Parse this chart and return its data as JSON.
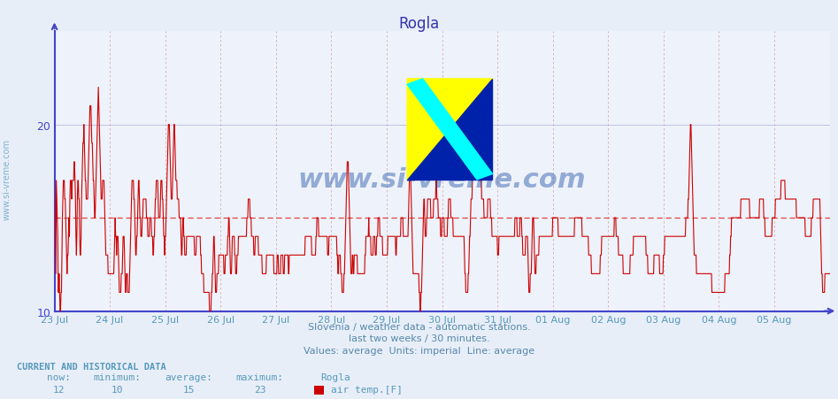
{
  "title": "Rogla",
  "title_color": "#3333aa",
  "bg_color": "#e8eef8",
  "plot_bg_color": "#eef2fa",
  "line_color": "#cc0000",
  "axis_color": "#4444cc",
  "grid_color_h": "#bbbbdd",
  "grid_color_v": "#ddaaaa",
  "avg_line_color": "#dd4444",
  "avg_value": 15,
  "ylim_min": 10,
  "ylim_max": 25,
  "yticks": [
    10,
    20
  ],
  "footnote1": "Slovenia / weather data - automatic stations.",
  "footnote2": "last two weeks / 30 minutes.",
  "footnote3": "Values: average  Units: imperial  Line: average",
  "footnote_color": "#5588aa",
  "watermark": "www.si-vreme.com",
  "watermark_color": "#2255aa",
  "stats_header": "CURRENT AND HISTORICAL DATA",
  "stats_values": [
    "12",
    "10",
    "15",
    "23"
  ],
  "stats_series": "air temp.[F]",
  "stats_color": "#5599bb",
  "x_dates": [
    "23 Jul",
    "24 Jul",
    "25 Jul",
    "26 Jul",
    "27 Jul",
    "28 Jul",
    "29 Jul",
    "30 Jul",
    "31 Jul",
    "01 Aug",
    "02 Aug",
    "03 Aug",
    "04 Aug",
    "05 Aug"
  ],
  "y_data": [
    17,
    16,
    14,
    12,
    17,
    16,
    15,
    14,
    11,
    11,
    12,
    11,
    10,
    10,
    11,
    11,
    13,
    15,
    16,
    17,
    17,
    17,
    16,
    16,
    15,
    14,
    13,
    12,
    13,
    13,
    14,
    15,
    14,
    16,
    17,
    17,
    17,
    16,
    17,
    17,
    17,
    17,
    18,
    18,
    17,
    16,
    14,
    13,
    14,
    16,
    17,
    17,
    16,
    16,
    14,
    13,
    13,
    14,
    16,
    17,
    18,
    19,
    19,
    20,
    19,
    18,
    17,
    17,
    16,
    16,
    16,
    16,
    17,
    18,
    19,
    20,
    21,
    21,
    21,
    20,
    19,
    19,
    18,
    17,
    17,
    16,
    15,
    15,
    16,
    17,
    18,
    19,
    20,
    21,
    22,
    21,
    20,
    19,
    18,
    17,
    16,
    16,
    16,
    17,
    17,
    17,
    17,
    16,
    15,
    14,
    13,
    13,
    13,
    13,
    13,
    12,
    12,
    12,
    12,
    12,
    12,
    12,
    12,
    12,
    12,
    12,
    12,
    12,
    13,
    14,
    15,
    14,
    14,
    13,
    14,
    14,
    14,
    13,
    12,
    11,
    11,
    11,
    11,
    12,
    12,
    12,
    13,
    14,
    14,
    14,
    13,
    12,
    11,
    11,
    12,
    12,
    12,
    11,
    11,
    11,
    11,
    12,
    13,
    14,
    15,
    16,
    17,
    17,
    17,
    17,
    16,
    16,
    15,
    14,
    13,
    13,
    14,
    14,
    15,
    16,
    17,
    17,
    16,
    15,
    15,
    14,
    14,
    14,
    15,
    15,
    16,
    16,
    16,
    16,
    16,
    16,
    16,
    15,
    15,
    15,
    14,
    14,
    14,
    14,
    15,
    15,
    15,
    15,
    14,
    14,
    14,
    13,
    13,
    14,
    14,
    15,
    16,
    16,
    17,
    17,
    17,
    17,
    16,
    15,
    15,
    15,
    15,
    16,
    17,
    17,
    17,
    16,
    16,
    15,
    14,
    14,
    13,
    14,
    14,
    15,
    16,
    17,
    18,
    19,
    20,
    20,
    20,
    19,
    18,
    17,
    16,
    16,
    16,
    17,
    18,
    19,
    20,
    20,
    19,
    18,
    17,
    17,
    17,
    16,
    16,
    16,
    16,
    15,
    15,
    15,
    15,
    14,
    13,
    13,
    14,
    15,
    15,
    14,
    14,
    13,
    13,
    13,
    13,
    14,
    14,
    14,
    14,
    14,
    14,
    14,
    14,
    14,
    14,
    14,
    14,
    14,
    14,
    14,
    14,
    14,
    13,
    13,
    13,
    13,
    14,
    14,
    14,
    14,
    14,
    14,
    14,
    14,
    14,
    13,
    13,
    12,
    12,
    12,
    12,
    12,
    11,
    11,
    11,
    11,
    11,
    11,
    11,
    11,
    11,
    11,
    11,
    11,
    10,
    10,
    10,
    10,
    11,
    11,
    12,
    12,
    13,
    14,
    14,
    13,
    12,
    11,
    11,
    11,
    12,
    12,
    12,
    12,
    13,
    13,
    13,
    13,
    13,
    13,
    13,
    13,
    13,
    13,
    13,
    12,
    12,
    12,
    13,
    13,
    13,
    13,
    13,
    14,
    14,
    15,
    15,
    14,
    13,
    12,
    12,
    12,
    13,
    14,
    14,
    14,
    14,
    14,
    13,
    13,
    12,
    12,
    12,
    13,
    13,
    13,
    14,
    14,
    14,
    14,
    14,
    14,
    14,
    14,
    14,
    14,
    14,
    14,
    14,
    14,
    14,
    14,
    14,
    14,
    15,
    15,
    15,
    16,
    16,
    16,
    16,
    15,
    15,
    15,
    14,
    14,
    14,
    14,
    14,
    13,
    13,
    13,
    14,
    14,
    14,
    14,
    14,
    14,
    14,
    13,
    13,
    13,
    13,
    13,
    13,
    13,
    13,
    12,
    12,
    12,
    12,
    12,
    12,
    12,
    12,
    12,
    13,
    13,
    13,
    13,
    13,
    13,
    13,
    13,
    13,
    13,
    13,
    13,
    13,
    13,
    13,
    13,
    12,
    12,
    12,
    12,
    12,
    12,
    12,
    13,
    13,
    13,
    12,
    12,
    12,
    12,
    12,
    13,
    13,
    13,
    13,
    13,
    12,
    12,
    12,
    13,
    13,
    13,
    13,
    13,
    13,
    13,
    13,
    12,
    12,
    13,
    13,
    13,
    13,
    13,
    13,
    13,
    13,
    13,
    13,
    13,
    13,
    13,
    13,
    13,
    13,
    13,
    13,
    13,
    13,
    13,
    13,
    13,
    13,
    13,
    13,
    13,
    13,
    13,
    13,
    13,
    13,
    13,
    13,
    14,
    14,
    14,
    14,
    14,
    14,
    14,
    14,
    14,
    14,
    14,
    14,
    14,
    14,
    13,
    13,
    13,
    13,
    13,
    13,
    13,
    13,
    13,
    14,
    14,
    15,
    15,
    15,
    15,
    14,
    14,
    14,
    14,
    14,
    14,
    14,
    14,
    14,
    14,
    14,
    14,
    14,
    14,
    14,
    14,
    14,
    14,
    14,
    13,
    13,
    13,
    14,
    14,
    14,
    14,
    14,
    14,
    14,
    14,
    14,
    14,
    14,
    14,
    14,
    14,
    14,
    14,
    14,
    13,
    13,
    12,
    12,
    13,
    13,
    13,
    13,
    12,
    12,
    12,
    11,
    11,
    11,
    11,
    12,
    12,
    13,
    14,
    15,
    16,
    17,
    18,
    18,
    18,
    17,
    16,
    15,
    14,
    13,
    12,
    12,
    12,
    13,
    13,
    12,
    12,
    13,
    13,
    13,
    13,
    13,
    13,
    13,
    12,
    12,
    12,
    12,
    12,
    12,
    12,
    12,
    12,
    12,
    12,
    12,
    12,
    12,
    12,
    12,
    13,
    13,
    14,
    14,
    14,
    14,
    14,
    14,
    15,
    14,
    14,
    14,
    14,
    13,
    13,
    13,
    13,
    13,
    14,
    14,
    14,
    14,
    13,
    13,
    13,
    14,
    14,
    14,
    15,
    15,
    15,
    15,
    14,
    14,
    14,
    14,
    14,
    14,
    13,
    13,
    13,
    13,
    13,
    13,
    13,
    13,
    13,
    13,
    13,
    14,
    14,
    14,
    14,
    14,
    14,
    14,
    14,
    14,
    14,
    14,
    14,
    14,
    14,
    14,
    14,
    14,
    13,
    13,
    14,
    14,
    14,
    14,
    14,
    14,
    14,
    14,
    14,
    15,
    15,
    15,
    15,
    15,
    14,
    14,
    14,
    14,
    14,
    14,
    14,
    14,
    14,
    14,
    14,
    15,
    16,
    17,
    17,
    17,
    17,
    16,
    15,
    14,
    13,
    12,
    12,
    12,
    12,
    12,
    12,
    12,
    12,
    12,
    12,
    12,
    12,
    12,
    11,
    11,
    10,
    10,
    11,
    11,
    12,
    13,
    14,
    15,
    16,
    16,
    15,
    14,
    14,
    14,
    15,
    15,
    16,
    16,
    16,
    16,
    16,
    16,
    16,
    15,
    15,
    15,
    15,
    15,
    15,
    16,
    16,
    16,
    16,
    16,
    17,
    17,
    16,
    16,
    16,
    15,
    15,
    15,
    15,
    15,
    14,
    14,
    14,
    15,
    15,
    15,
    15,
    15,
    14,
    14,
    14,
    14,
    14,
    14,
    14,
    15,
    15,
    16,
    16,
    16,
    16,
    16,
    15,
    15,
    15,
    15,
    15,
    14,
    14,
    14,
    14,
    14,
    14,
    14,
    14,
    14,
    14,
    14,
    14,
    14,
    14,
    14,
    14,
    14,
    14,
    14,
    14,
    14,
    14,
    14,
    14,
    13,
    12,
    12,
    11,
    11,
    11,
    11,
    11,
    12,
    12,
    13,
    14,
    14,
    15,
    16,
    16,
    16,
    17,
    18,
    18,
    18,
    18,
    18,
    18,
    18,
    18,
    19,
    19,
    18,
    18,
    18,
    18,
    17,
    17,
    17,
    17,
    17,
    16,
    16,
    16,
    16,
    16,
    15,
    15,
    15,
    15,
    15,
    15,
    15,
    15,
    16,
    16,
    16,
    16,
    16,
    16,
    15,
    15,
    15,
    14,
    14,
    14,
    14,
    14,
    14,
    14,
    14,
    14,
    14,
    14,
    14,
    13,
    13,
    13,
    14,
    14,
    14,
    14,
    14,
    14,
    14,
    14,
    14,
    14,
    14,
    14,
    14,
    14,
    14,
    14,
    14,
    14,
    14,
    14,
    14,
    14,
    14,
    14,
    14,
    14,
    14,
    14,
    14,
    14,
    14,
    14,
    14,
    14,
    15,
    15,
    15,
    15,
    15,
    14,
    14,
    14,
    14,
    14,
    14,
    15,
    15,
    15,
    15,
    14,
    14,
    13,
    13,
    13,
    13,
    13,
    13,
    14,
    14,
    14,
    14,
    14,
    13,
    12,
    11,
    11,
    11,
    12,
    12,
    12,
    13,
    14,
    15,
    15,
    15,
    14,
    13,
    12,
    12,
    12,
    13,
    13,
    13,
    13,
    13,
    13,
    14,
    14,
    14,
    14,
    14,
    14,
    14,
    14,
    14,
    14,
    14,
    14,
    14,
    14,
    14,
    14,
    14,
    14,
    14,
    14,
    14,
    14,
    14,
    14,
    14,
    14,
    14,
    14,
    14,
    15,
    15,
    15,
    15,
    15,
    15,
    15,
    15,
    15,
    15,
    15,
    15,
    14,
    14,
    14,
    14,
    14,
    14,
    14,
    14,
    14,
    14,
    14,
    14,
    14,
    14,
    14,
    14,
    14,
    14,
    14,
    14,
    14,
    14,
    14,
    14,
    14,
    14,
    14,
    14,
    14,
    14,
    14,
    14,
    14,
    14,
    14,
    15,
    15,
    15,
    15,
    15,
    15,
    15,
    15,
    15,
    15,
    15,
    15,
    15,
    15,
    15,
    15,
    14,
    14,
    14,
    14,
    14,
    14,
    14,
    14,
    14,
    14,
    14,
    14,
    14,
    14,
    13,
    13,
    13,
    13,
    13,
    13,
    12,
    12,
    12,
    12,
    12,
    12,
    12,
    12,
    12,
    12,
    12,
    12,
    12,
    12,
    12,
    12,
    12,
    12,
    12,
    13,
    13,
    13,
    14,
    14,
    14,
    14,
    14,
    14,
    14,
    14,
    14,
    14,
    14,
    14,
    14,
    14,
    14,
    14,
    14,
    14,
    14,
    14,
    14,
    14,
    14,
    14,
    14,
    14,
    14,
    15,
    15,
    15,
    15,
    14,
    14,
    14,
    14,
    14,
    13,
    13,
    13,
    13,
    13,
    13,
    13,
    13,
    13,
    13,
    12,
    12,
    12,
    12,
    12,
    12,
    12,
    12,
    12,
    12,
    12,
    12,
    12,
    12,
    12,
    13,
    13,
    13,
    13,
    13,
    13,
    13,
    14,
    14,
    14,
    14,
    14,
    14,
    14,
    14,
    14,
    14,
    14,
    14,
    14,
    14,
    14,
    14,
    14,
    14,
    14,
    14,
    14,
    14,
    14,
    14,
    14,
    14,
    14,
    13,
    13,
    13,
    13,
    12,
    12,
    12,
    12,
    12,
    12,
    12,
    12,
    12,
    12,
    12,
    12,
    12,
    13,
    13,
    13,
    13,
    13,
    13,
    13,
    13,
    13,
    13,
    13,
    13,
    12,
    12,
    12,
    12,
    12,
    12,
    12,
    12,
    13,
    13,
    13,
    14,
    14,
    14,
    14,
    14,
    14,
    14,
    14,
    14,
    14,
    14,
    14,
    14,
    14,
    14,
    14,
    14,
    14,
    14,
    14,
    14,
    14,
    14,
    14,
    14,
    14,
    14,
    14,
    14,
    14,
    14,
    14,
    14,
    14,
    14,
    14,
    14,
    14,
    14,
    14,
    14,
    14,
    14,
    14,
    14,
    15,
    15,
    15,
    15,
    15,
    16,
    16,
    17,
    18,
    19,
    20,
    20,
    19,
    18,
    17,
    16,
    15,
    14,
    13,
    13,
    13,
    13,
    13,
    12,
    12,
    12,
    12,
    12,
    12,
    12,
    12,
    12,
    12,
    12,
    12,
    12,
    12,
    12,
    12,
    12,
    12,
    12,
    12,
    12,
    12,
    12,
    12,
    12,
    12,
    12,
    12,
    12,
    12,
    12,
    12,
    12,
    11,
    11,
    11,
    11,
    11,
    11,
    11,
    11,
    11,
    11,
    11,
    11,
    11,
    11,
    11,
    11,
    11,
    11,
    11,
    11,
    11,
    11,
    11,
    11,
    11,
    11,
    11,
    11,
    12,
    12,
    12,
    12,
    12,
    12,
    12,
    12,
    12,
    12,
    13,
    13,
    14,
    14,
    15,
    15,
    15,
    15,
    15,
    15,
    15,
    15,
    15,
    15,
    15,
    15,
    15,
    15,
    15,
    15,
    15,
    15,
    15,
    15,
    16,
    16,
    16,
    16,
    16,
    16,
    16,
    16,
    16,
    16,
    16,
    16,
    16,
    16,
    16,
    16,
    16,
    16,
    16,
    15,
    15,
    15,
    15,
    15,
    15,
    15,
    15,
    15,
    15,
    15,
    15,
    15,
    15,
    15,
    15,
    15,
    15,
    15,
    15,
    15,
    16,
    16,
    16,
    16,
    16,
    16,
    16,
    16,
    16,
    15,
    15,
    15,
    14,
    14,
    14,
    14,
    14,
    14,
    14,
    14,
    14,
    14,
    14,
    14,
    14,
    14,
    14,
    15,
    15,
    15,
    15,
    15,
    15,
    15,
    16,
    16,
    16,
    16,
    16,
    16,
    16,
    16,
    16,
    16,
    16,
    16,
    17,
    17,
    17,
    17,
    17,
    17,
    17,
    17,
    17,
    16,
    16,
    16,
    16,
    16,
    16,
    16,
    16,
    16,
    16,
    16,
    16,
    16,
    16,
    16,
    16,
    16,
    16,
    16,
    16,
    16,
    16,
    16,
    16,
    15,
    15,
    15,
    15,
    15,
    15,
    15,
    15,
    15,
    15,
    15,
    15,
    15,
    15,
    15,
    15,
    15,
    15,
    15,
    14,
    14,
    14,
    14,
    14,
    14,
    14,
    14,
    14,
    14,
    14,
    14,
    14,
    15,
    15,
    15,
    15,
    16,
    16,
    16,
    16,
    16,
    16,
    16,
    16,
    16,
    16,
    16,
    16,
    16,
    16,
    16,
    15,
    14,
    13,
    12,
    12,
    11,
    11,
    11,
    11,
    11,
    12,
    12,
    12,
    12,
    12,
    12,
    12,
    12,
    12,
    12,
    12
  ]
}
